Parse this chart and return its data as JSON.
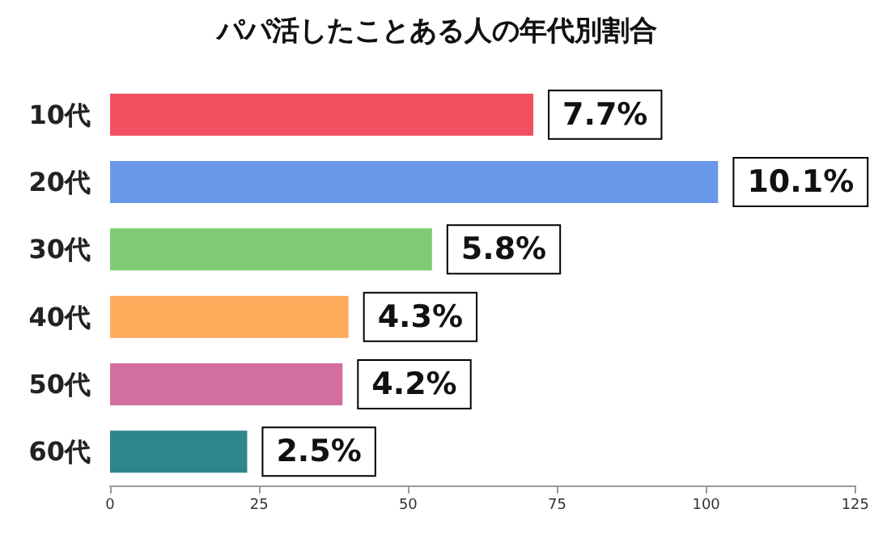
{
  "chart_data": {
    "type": "bar",
    "orientation": "horizontal",
    "title": "パパ活したことある人の年代別割合",
    "categories": [
      "10代",
      "20代",
      "30代",
      "40代",
      "50代",
      "60代"
    ],
    "values": [
      71,
      102,
      54,
      40,
      39,
      23
    ],
    "annotations": [
      {
        "text": "7.7%",
        "x": 71,
        "y": "10代"
      },
      {
        "text": "10.1%",
        "x": 102,
        "y": "20代"
      },
      {
        "text": "5.8%",
        "x": 54,
        "y": "30代"
      },
      {
        "text": "4.3%",
        "x": 40,
        "y": "40代"
      },
      {
        "text": "4.2%",
        "x": 39,
        "y": "50代"
      },
      {
        "text": "2.5%",
        "x": 23,
        "y": "60代"
      }
    ],
    "colors": [
      "#f0505f",
      "#6b99ea",
      "#7fcb75",
      "#fdac5c",
      "#d36f9f",
      "#2e858c"
    ],
    "xlim": [
      0,
      125
    ],
    "xticks": [
      0,
      25,
      50,
      75,
      100,
      125
    ],
    "grid": false
  }
}
